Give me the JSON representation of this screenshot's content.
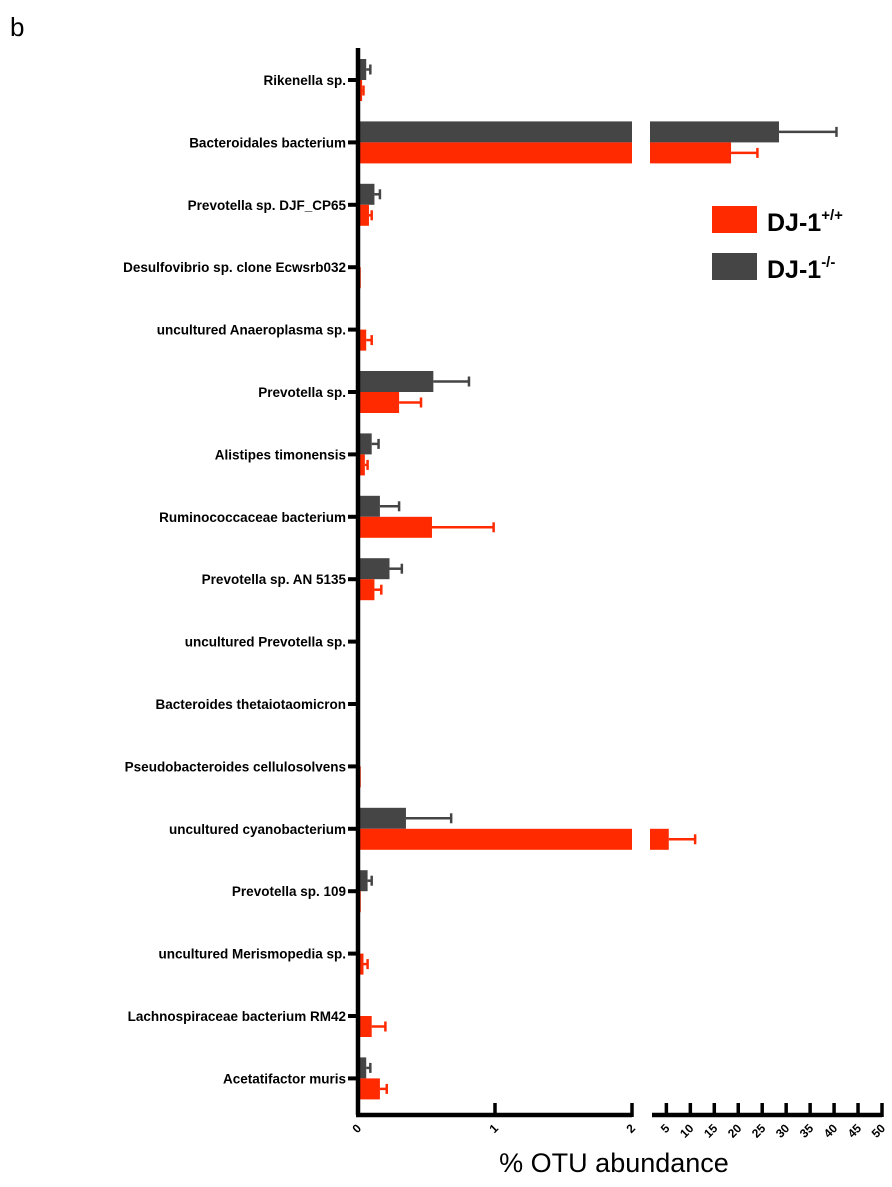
{
  "panel_label": "b",
  "chart_data": {
    "type": "bar",
    "orientation": "horizontal",
    "xlabel": "% OTU abundance",
    "axis_break": {
      "segment_1": [
        0,
        2
      ],
      "segment_2": [
        2,
        50
      ]
    },
    "x_ticks_segment_1": [
      "0",
      "1",
      "2"
    ],
    "x_ticks_segment_2": [
      "5",
      "10",
      "15",
      "20",
      "25",
      "30",
      "35",
      "40",
      "45",
      "50"
    ],
    "legend": {
      "position": "top-right",
      "entries": [
        {
          "base": "DJ-1",
          "sup": "+/+",
          "color": "#ff2a00"
        },
        {
          "base": "DJ-1",
          "sup": "-/-",
          "color": "#454545"
        }
      ]
    },
    "categories": [
      "Rikenella sp.",
      "Bacteroidales bacterium",
      "Prevotella sp. DJF_CP65",
      "Desulfovibrio sp. clone Ecwsrb032",
      "uncultured Anaeroplasma sp.",
      "Prevotella sp.",
      "Alistipes timonensis",
      "Ruminococcaceae bacterium",
      "Prevotella sp. AN 5135",
      "uncultured Prevotella sp.",
      "Bacteroides thetaiotaomicron",
      "Pseudobacteroides cellulosolvens",
      "uncultured cyanobacterium",
      "Prevotella sp. 109",
      "uncultured Merismopedia sp.",
      "Lachnospiraceae bacterium RM42",
      "Acetatifactor muris"
    ],
    "series": [
      {
        "name": "DJ-1 -/-",
        "color": "#454545",
        "values": [
          0.06,
          28.5,
          0.12,
          0.01,
          0.01,
          0.55,
          0.1,
          0.16,
          0.23,
          0.01,
          0.005,
          0.01,
          0.35,
          0.07,
          0.0,
          0.0,
          0.06
        ],
        "errors": [
          0.03,
          12.0,
          0.04,
          0.0,
          0.0,
          0.26,
          0.05,
          0.14,
          0.09,
          0.0,
          0.0,
          0.0,
          0.33,
          0.03,
          0.0,
          0.0,
          0.03
        ]
      },
      {
        "name": "DJ-1 +/+",
        "color": "#ff2a00",
        "values": [
          0.03,
          18.5,
          0.08,
          0.02,
          0.06,
          0.3,
          0.05,
          0.54,
          0.12,
          0.005,
          0.0,
          0.02,
          5.5,
          0.02,
          0.04,
          0.1,
          0.16
        ],
        "errors": [
          0.01,
          5.5,
          0.02,
          0.0,
          0.04,
          0.16,
          0.02,
          0.45,
          0.05,
          0.0,
          0.0,
          0.0,
          5.5,
          0.0,
          0.03,
          0.1,
          0.05
        ]
      }
    ]
  }
}
